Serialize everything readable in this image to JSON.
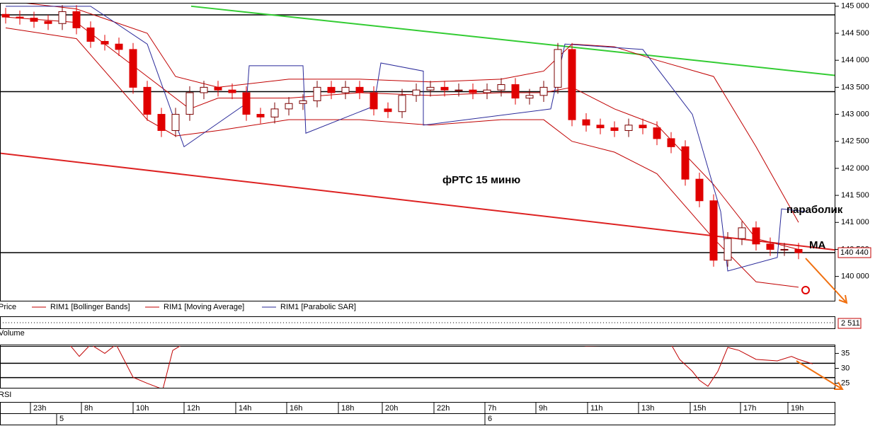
{
  "chart_data": [
    {
      "type": "candlestick",
      "xlim": [
        -0.4,
        58.6
      ],
      "ylim": [
        139550,
        145050
      ],
      "yticks": [
        {
          "value": 140000,
          "label": "140 000"
        },
        {
          "value": 140500,
          "label": "140 500"
        },
        {
          "value": 141000,
          "label": "141 000"
        },
        {
          "value": 141500,
          "label": "141 500"
        },
        {
          "value": 142000,
          "label": "142 000"
        },
        {
          "value": 142500,
          "label": "142 500"
        },
        {
          "value": 143000,
          "label": "143 000"
        },
        {
          "value": 143500,
          "label": "143 500"
        },
        {
          "value": 144000,
          "label": "144 000"
        },
        {
          "value": 144500,
          "label": "144 500"
        },
        {
          "value": 145000,
          "label": "145 000"
        }
      ],
      "xticks": [
        {
          "value": 1.75,
          "label": "23h"
        },
        {
          "value": 5.35,
          "label": "8h"
        },
        {
          "value": 9,
          "label": "10h"
        },
        {
          "value": 12.6,
          "label": "12h"
        },
        {
          "value": 16.25,
          "label": "14h"
        },
        {
          "value": 19.85,
          "label": "16h"
        },
        {
          "value": 23.5,
          "label": "18h"
        },
        {
          "value": 26.6,
          "label": "20h"
        },
        {
          "value": 30.25,
          "label": "22h"
        },
        {
          "value": 33.85,
          "label": "7h"
        },
        {
          "value": 37.45,
          "label": "9h"
        },
        {
          "value": 41.1,
          "label": "11h"
        },
        {
          "value": 44.7,
          "label": "13h"
        },
        {
          "value": 48.35,
          "label": "15h"
        },
        {
          "value": 51.9,
          "label": "17h"
        },
        {
          "value": 55.25,
          "label": "19h"
        }
      ],
      "day_ticks": [
        {
          "value": 3.6,
          "label": "5"
        },
        {
          "value": 33.85,
          "label": "6"
        }
      ],
      "candles": {
        "name": "Price",
        "up_color": "#ffffff",
        "down_color": "#e00000",
        "edge_color": "#7a0000",
        "open": [
          144850,
          144800,
          144780,
          144720,
          144680,
          144900,
          144600,
          144350,
          144300,
          144200,
          143500,
          143000,
          142700,
          143000,
          143400,
          143500,
          143450,
          143400,
          143000,
          142950,
          143100,
          143200,
          143250,
          143500,
          143400,
          143500,
          143400,
          143100,
          143050,
          143350,
          143450,
          143500,
          143450,
          143450,
          143400,
          143450,
          143550,
          143300,
          143350,
          143500,
          144200,
          142900,
          142800,
          142750,
          142700,
          142800,
          142750,
          142550,
          142400,
          141800,
          141400,
          140300,
          140700,
          140900,
          140600,
          140500,
          140500
        ],
        "high": [
          144970,
          144920,
          144900,
          144840,
          145020,
          145020,
          144720,
          144470,
          144420,
          144320,
          143620,
          143120,
          143120,
          143520,
          143620,
          143620,
          143570,
          143520,
          143120,
          143220,
          143320,
          143370,
          143620,
          143620,
          143620,
          143620,
          143520,
          143220,
          143470,
          143570,
          143620,
          143620,
          143570,
          143570,
          143570,
          143670,
          143670,
          143470,
          143620,
          144320,
          144320,
          143020,
          142920,
          142870,
          142920,
          142920,
          142870,
          142670,
          142520,
          141920,
          141520,
          140820,
          141020,
          141020,
          140720,
          140620,
          140620
        ],
        "low": [
          144680,
          144660,
          144600,
          144560,
          144560,
          144480,
          144230,
          144180,
          144080,
          143380,
          142880,
          142580,
          142580,
          142880,
          143280,
          143330,
          143280,
          142880,
          142830,
          142830,
          142980,
          143080,
          143130,
          143280,
          143280,
          143280,
          142980,
          142930,
          142930,
          143230,
          143330,
          143330,
          143330,
          143280,
          143280,
          143330,
          143180,
          143180,
          143230,
          143380,
          142780,
          142680,
          142630,
          142580,
          142580,
          142630,
          142430,
          142280,
          141680,
          141280,
          140180,
          140180,
          140580,
          140480,
          140380,
          140380,
          140320
        ],
        "close": [
          144800,
          144780,
          144720,
          144680,
          144900,
          144600,
          144350,
          144300,
          144200,
          143500,
          143000,
          142700,
          143000,
          143400,
          143500,
          143450,
          143400,
          143000,
          142950,
          143100,
          143200,
          143250,
          143500,
          143400,
          143500,
          143400,
          143100,
          143050,
          143350,
          143450,
          143500,
          143450,
          143450,
          143400,
          143450,
          143550,
          143300,
          143350,
          143500,
          144200,
          142900,
          142800,
          142750,
          142700,
          142800,
          142750,
          142550,
          142400,
          141800,
          141400,
          140300,
          140700,
          140900,
          140600,
          140500,
          140500,
          140440
        ]
      },
      "bollinger": {
        "name": "RIM1 [Bollinger Bands]",
        "color": "#c00000",
        "x": [
          0,
          5,
          10,
          12,
          15,
          20,
          25,
          30,
          35,
          38,
          40,
          43,
          46,
          50,
          53,
          56
        ],
        "upper": [
          145100,
          144950,
          144500,
          143700,
          143500,
          143650,
          143650,
          143600,
          143650,
          143800,
          144300,
          144250,
          144000,
          143700,
          142400,
          141000
        ],
        "lower": [
          144600,
          144400,
          142900,
          142600,
          142700,
          142900,
          142900,
          142800,
          142900,
          142900,
          142500,
          142300,
          141900,
          140700,
          139900,
          139800
        ]
      },
      "moving_average": {
        "name": "RIM1 [Moving Average]",
        "color": "#c00000",
        "x": [
          0,
          5,
          10,
          13,
          15,
          20,
          25,
          30,
          35,
          38,
          40,
          43,
          46,
          50,
          53,
          56
        ],
        "values": [
          144800,
          144700,
          143700,
          143100,
          143300,
          143300,
          143400,
          143350,
          143400,
          143400,
          143500,
          143100,
          142800,
          141700,
          140700,
          140500
        ]
      },
      "sar": {
        "name": "RIM1 [Parabolic SAR]",
        "color": "#2a2a9a",
        "x": [
          0,
          6,
          10,
          12.6,
          17,
          17.2,
          21,
          21.2,
          26,
          26.5,
          29.5,
          29.5,
          38.5,
          39.5,
          45,
          48.5,
          50.5,
          51,
          54.5,
          54.8,
          56.5
        ],
        "values": [
          145000,
          145000,
          144300,
          142400,
          143200,
          143900,
          143900,
          142650,
          143150,
          143950,
          143800,
          142800,
          143100,
          144300,
          144200,
          143000,
          141200,
          140100,
          140350,
          141250,
          141200
        ]
      },
      "trendlines": [
        {
          "color": "#33cc33",
          "x": [
            13.1,
            58.6
          ],
          "values": [
            145000,
            143720
          ]
        },
        {
          "color": "#dd2222",
          "x": [
            -0.4,
            58.6
          ],
          "values": [
            142280,
            140490
          ]
        }
      ],
      "hlines": [
        144840,
        143420,
        140440
      ],
      "last_price": {
        "value": 140440,
        "label": "140 440"
      },
      "annotations": [
        "фРТС   15 миню",
        "параболик",
        "MA"
      ]
    },
    {
      "type": "volume",
      "title": "Volume",
      "values": [
        2511
      ],
      "value_labels": [
        "2 511"
      ]
    },
    {
      "type": "line",
      "title": "RSI",
      "ylim": [
        23.5,
        37.7
      ],
      "yticks": [
        25,
        30,
        35
      ],
      "hlines": [
        37.4,
        31.7,
        26.9
      ],
      "series": [
        {
          "name": "RSI",
          "color": "#c00000",
          "x": [
            4.5,
            5.2,
            6,
            7,
            7.8,
            9,
            10,
            11.1,
            11.8,
            12.5,
            40,
            41,
            47,
            47.6,
            48.5,
            49,
            49.6,
            50.3,
            51,
            51.8,
            53,
            54.5,
            55.5,
            56,
            57
          ],
          "values": [
            38,
            34,
            38,
            35,
            38,
            27,
            25,
            23,
            36,
            38,
            38,
            37.5,
            38,
            33,
            29,
            26,
            24,
            29,
            37,
            36,
            33,
            32.5,
            34,
            33,
            31.5
          ]
        }
      ]
    }
  ]
}
